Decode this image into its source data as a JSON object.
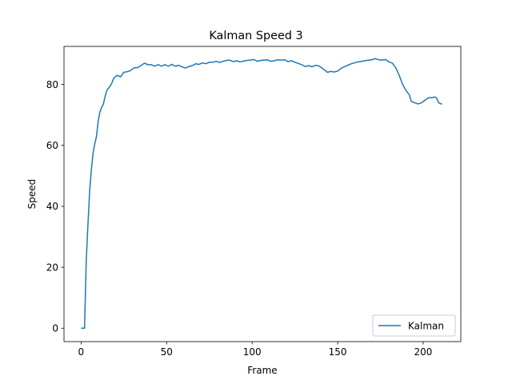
{
  "chart_data": {
    "type": "line",
    "title": "Kalman Speed 3",
    "xlabel": "Frame",
    "ylabel": "Speed",
    "xlim": [
      -10,
      222
    ],
    "ylim": [
      -4.4,
      92.5
    ],
    "xticks": [
      0,
      50,
      100,
      150,
      200
    ],
    "yticks": [
      0,
      20,
      40,
      60,
      80
    ],
    "grid": false,
    "legend_position": "lower-right",
    "series": [
      {
        "name": "Kalman",
        "color": "#1f77b4",
        "points": [
          [
            0,
            0
          ],
          [
            2,
            0
          ],
          [
            3,
            22
          ],
          [
            4,
            34
          ],
          [
            5,
            45
          ],
          [
            6,
            52
          ],
          [
            7,
            57.5
          ],
          [
            8,
            60.5
          ],
          [
            9,
            63
          ],
          [
            10,
            68
          ],
          [
            11,
            71
          ],
          [
            12,
            72.5
          ],
          [
            13,
            73.5
          ],
          [
            14,
            76
          ],
          [
            15,
            78
          ],
          [
            17,
            79.5
          ],
          [
            18,
            80.5
          ],
          [
            19,
            82
          ],
          [
            21,
            83
          ],
          [
            23,
            82.5
          ],
          [
            25,
            84
          ],
          [
            27,
            84.2
          ],
          [
            29,
            84.6
          ],
          [
            31,
            85.5
          ],
          [
            33,
            85.5
          ],
          [
            35,
            86.2
          ],
          [
            37,
            87
          ],
          [
            39,
            86.5
          ],
          [
            41,
            86.5
          ],
          [
            43,
            86
          ],
          [
            45,
            86.5
          ],
          [
            47,
            86
          ],
          [
            49,
            86.5
          ],
          [
            51,
            86
          ],
          [
            53,
            86.6
          ],
          [
            55,
            86
          ],
          [
            57,
            86.3
          ],
          [
            59,
            85.8
          ],
          [
            61,
            85.4
          ],
          [
            63,
            85.9
          ],
          [
            65,
            86.2
          ],
          [
            67,
            86.8
          ],
          [
            69,
            86.6
          ],
          [
            71,
            87.1
          ],
          [
            73,
            86.8
          ],
          [
            75,
            87.3
          ],
          [
            77,
            87.3
          ],
          [
            79,
            87.6
          ],
          [
            81,
            87.2
          ],
          [
            83,
            87.6
          ],
          [
            85,
            87.9
          ],
          [
            87,
            88
          ],
          [
            89,
            87.5
          ],
          [
            91,
            87.8
          ],
          [
            93,
            87.4
          ],
          [
            95,
            87.7
          ],
          [
            97,
            87.9
          ],
          [
            99,
            88
          ],
          [
            101,
            88.2
          ],
          [
            103,
            87.6
          ],
          [
            105,
            87.9
          ],
          [
            107,
            88
          ],
          [
            109,
            88.1
          ],
          [
            111,
            87.6
          ],
          [
            113,
            87.8
          ],
          [
            115,
            88.1
          ],
          [
            117,
            88
          ],
          [
            119,
            88.1
          ],
          [
            121,
            87.5
          ],
          [
            123,
            87.8
          ],
          [
            125,
            87.3
          ],
          [
            127,
            86.9
          ],
          [
            129,
            86.5
          ],
          [
            131,
            85.9
          ],
          [
            133,
            86.2
          ],
          [
            135,
            85.8
          ],
          [
            137,
            86.3
          ],
          [
            139,
            86.1
          ],
          [
            141,
            85.3
          ],
          [
            143,
            84.5
          ],
          [
            144,
            84
          ],
          [
            146,
            84.3
          ],
          [
            148,
            84.1
          ],
          [
            150,
            84.4
          ],
          [
            152,
            85.3
          ],
          [
            155,
            86.1
          ],
          [
            158,
            86.8
          ],
          [
            161,
            87.3
          ],
          [
            164,
            87.6
          ],
          [
            167,
            87.9
          ],
          [
            170,
            88.1
          ],
          [
            172,
            88.5
          ],
          [
            174,
            88.1
          ],
          [
            176,
            88
          ],
          [
            178,
            88.2
          ],
          [
            180,
            87.4
          ],
          [
            182,
            87
          ],
          [
            184,
            85.5
          ],
          [
            186,
            83
          ],
          [
            188,
            80
          ],
          [
            190,
            78
          ],
          [
            192,
            76.5
          ],
          [
            193,
            74.5
          ],
          [
            195,
            74
          ],
          [
            197,
            73.6
          ],
          [
            199,
            74
          ],
          [
            201,
            74.8
          ],
          [
            203,
            75.6
          ],
          [
            205,
            75.7
          ],
          [
            207,
            75.9
          ],
          [
            208,
            75.4
          ],
          [
            209,
            74
          ],
          [
            211,
            73.5
          ]
        ]
      }
    ]
  }
}
